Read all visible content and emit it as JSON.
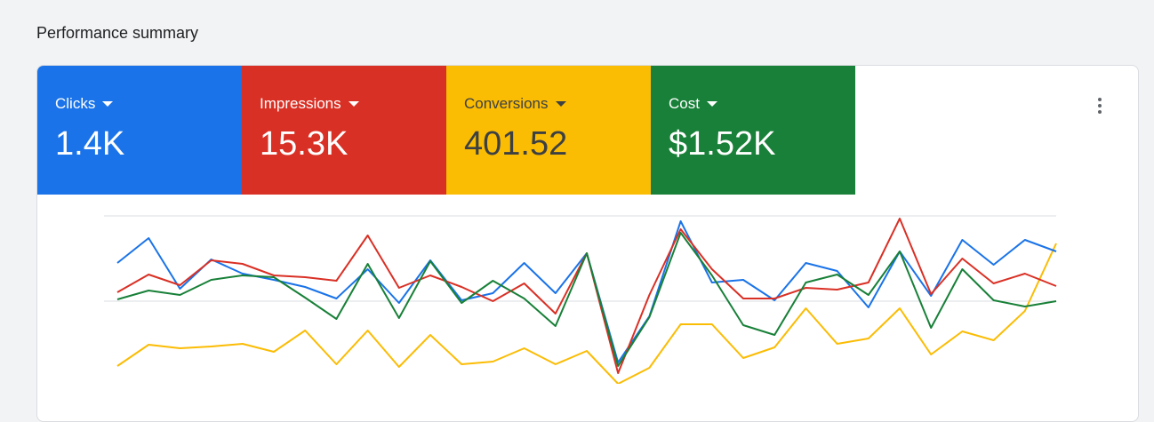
{
  "title": "Performance summary",
  "metrics": [
    {
      "label": "Clicks",
      "value": "1.4K"
    },
    {
      "label": "Impressions",
      "value": "15.3K"
    },
    {
      "label": "Conversions",
      "value": "401.52"
    },
    {
      "label": "Cost",
      "value": "$1.52K"
    }
  ],
  "chart_data": {
    "type": "line",
    "ylim": [
      0,
      192
    ],
    "grid_values": [
      96,
      192
    ],
    "series": [
      {
        "color": "#1a73e8",
        "values": [
          139,
          167,
          110,
          143,
          127,
          120,
          112,
          99,
          132,
          94,
          142,
          97,
          105,
          139,
          105,
          150,
          27,
          79,
          186,
          117,
          120,
          97,
          139,
          130,
          89,
          152,
          102,
          165,
          137,
          165,
          152
        ]
      },
      {
        "color": "#d93025",
        "values": [
          106,
          126,
          114,
          142,
          138,
          125,
          123,
          119,
          170,
          111,
          125,
          112,
          96,
          116,
          82,
          150,
          15,
          103,
          177,
          132,
          99,
          99,
          111,
          109,
          117,
          189,
          104,
          144,
          116,
          127,
          113
        ]
      },
      {
        "color": "#fbbc04",
        "values": [
          23,
          47,
          43,
          45,
          48,
          39,
          63,
          25,
          63,
          22,
          58,
          25,
          28,
          43,
          25,
          40,
          3,
          21,
          70,
          70,
          32,
          44,
          88,
          48,
          54,
          88,
          36,
          62,
          52,
          85,
          161
        ]
      },
      {
        "color": "#188038",
        "values": [
          98,
          108,
          103,
          120,
          125,
          123,
          100,
          76,
          138,
          77,
          141,
          94,
          119,
          99,
          68,
          150,
          23,
          78,
          173,
          125,
          69,
          58,
          117,
          126,
          103,
          152,
          66,
          132,
          97,
          90,
          96
        ]
      }
    ]
  }
}
